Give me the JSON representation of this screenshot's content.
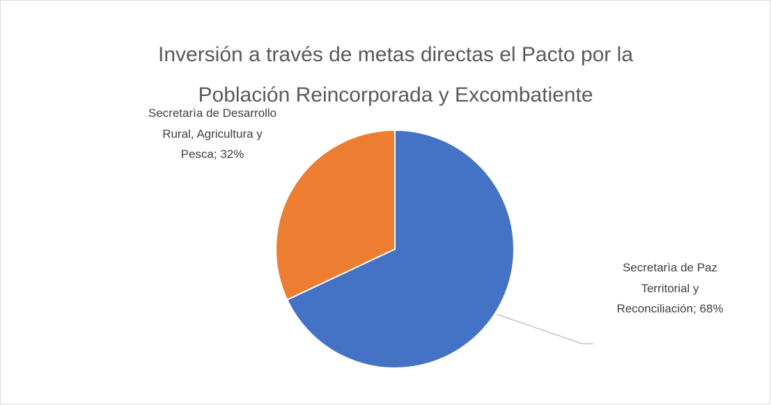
{
  "chart_data": {
    "type": "pie",
    "title": "Inversión a través de metas directas el Pacto por la Población Reincorporada y Excombatiente",
    "categories": [
      "Secretarìa de Paz Territorial y Reconciliación",
      "Secretarìa de Desarrollo Rural, Agricultura y Pesca"
    ],
    "values": [
      68,
      32
    ],
    "value_labels": [
      "68%",
      "32%"
    ],
    "label_separator": ";",
    "colors": [
      "#4472c4",
      "#ed7d31"
    ]
  }
}
